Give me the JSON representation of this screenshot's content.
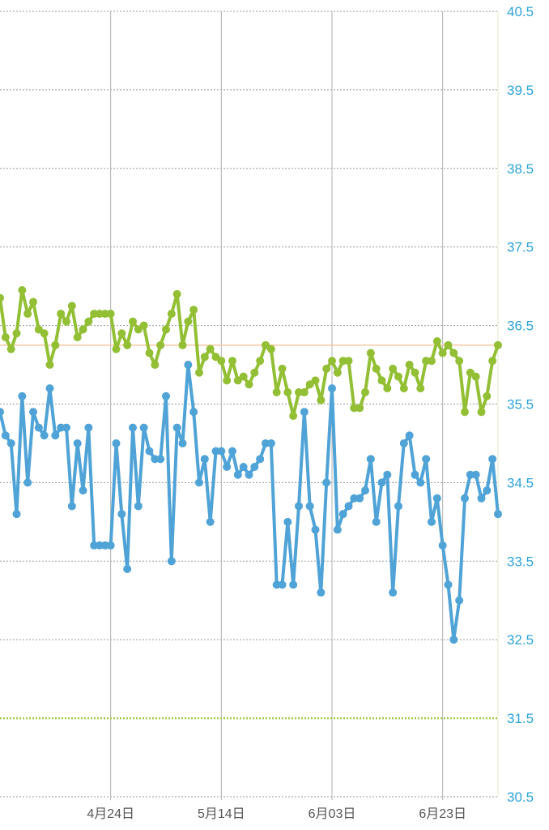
{
  "chart_data": {
    "type": "line",
    "y_ticks": [
      "40.5",
      "39.5",
      "38.5",
      "37.5",
      "36.5",
      "35.5",
      "34.5",
      "33.5",
      "32.5",
      "31.5",
      "30.5"
    ],
    "ylim": [
      30.5,
      40.5
    ],
    "x_ticks": [
      {
        "label": "4月24日",
        "day": 22
      },
      {
        "label": "5月14日",
        "day": 42
      },
      {
        "label": "6月03日",
        "day": 62
      },
      {
        "label": "6月23日",
        "day": 82
      }
    ],
    "xlim": [
      2,
      92
    ],
    "grid": true,
    "legend": "none",
    "reference_lines": [
      {
        "value": 36.25,
        "color": "#f6c9a4",
        "style": "solid"
      },
      {
        "value": 31.5,
        "color": "#a8c84a",
        "style": "dotted"
      }
    ],
    "series": [
      {
        "color": "#93bf35",
        "values": [
          36.85,
          36.35,
          36.2,
          36.4,
          36.95,
          36.65,
          36.8,
          36.45,
          36.4,
          36.0,
          36.25,
          36.65,
          36.55,
          36.75,
          36.35,
          36.45,
          36.55,
          36.65,
          36.65,
          36.65,
          36.65,
          36.2,
          36.4,
          36.25,
          36.55,
          36.45,
          36.5,
          36.15,
          36.0,
          36.25,
          36.45,
          36.65,
          36.9,
          36.25,
          36.55,
          36.7,
          35.9,
          36.1,
          36.2,
          36.1,
          36.05,
          35.8,
          36.05,
          35.8,
          35.85,
          35.75,
          35.9,
          36.05,
          36.25,
          36.2,
          35.65,
          35.95,
          35.65,
          35.35,
          35.65,
          35.65,
          35.75,
          35.8,
          35.55,
          35.95,
          36.05,
          35.9,
          36.05,
          36.05,
          35.45,
          35.45,
          35.65,
          36.15,
          35.95,
          35.8,
          35.7,
          35.95,
          35.85,
          35.7,
          36.0,
          35.9,
          35.7,
          36.05,
          36.05,
          36.3,
          36.15,
          36.25,
          36.15,
          36.05,
          35.4,
          35.9,
          35.85,
          35.4,
          35.6,
          36.05,
          36.25
        ]
      },
      {
        "color": "#4fa3d6",
        "values": [
          35.4,
          35.1,
          35.0,
          34.1,
          35.6,
          34.5,
          35.4,
          35.2,
          35.1,
          35.7,
          35.1,
          35.2,
          35.2,
          34.2,
          35.0,
          34.4,
          35.2,
          33.7,
          33.7,
          33.7,
          33.7,
          35.0,
          34.1,
          33.4,
          35.2,
          34.2,
          35.2,
          34.9,
          34.8,
          34.8,
          35.6,
          33.5,
          35.2,
          35.0,
          36.0,
          35.4,
          34.5,
          34.8,
          34.0,
          34.9,
          34.9,
          34.7,
          34.9,
          34.6,
          34.7,
          34.6,
          34.7,
          34.8,
          35.0,
          35.0,
          33.2,
          33.2,
          34.0,
          33.2,
          34.2,
          35.4,
          34.2,
          33.9,
          33.1,
          34.5,
          35.7,
          33.9,
          34.1,
          34.2,
          34.3,
          34.3,
          34.4,
          34.8,
          34.0,
          34.5,
          34.6,
          33.1,
          34.2,
          35.0,
          35.1,
          34.6,
          34.5,
          34.8,
          34.0,
          34.3,
          33.7,
          33.2,
          32.5,
          33.0,
          34.3,
          34.6,
          34.6,
          34.3,
          34.4,
          34.8,
          34.1
        ]
      }
    ]
  }
}
